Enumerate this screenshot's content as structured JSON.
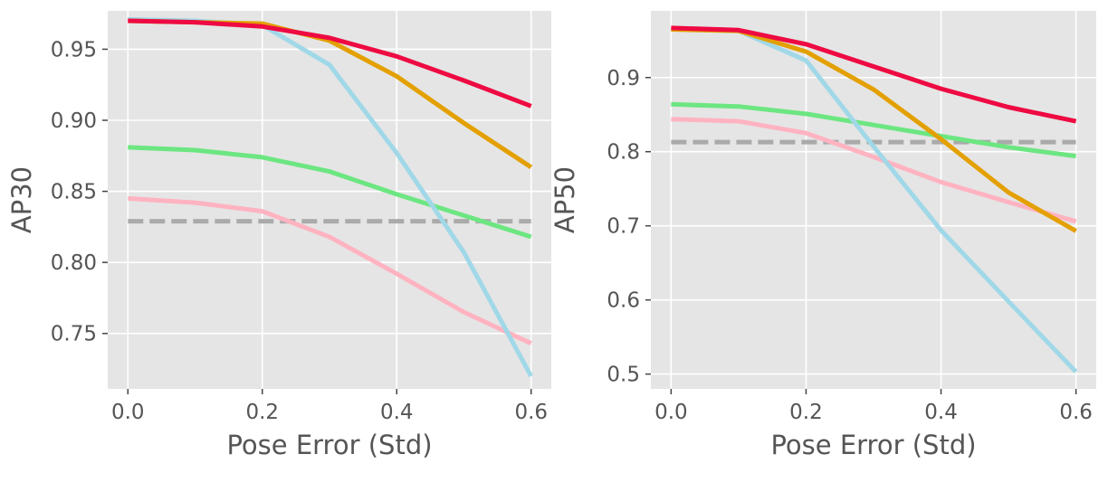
{
  "chart_data": [
    {
      "type": "line",
      "title": "",
      "xlabel": "Pose Error (Std)",
      "ylabel": "AP30",
      "xlim": [
        -0.03,
        0.63
      ],
      "ylim": [
        0.711,
        0.977
      ],
      "x_ticks": [
        0.0,
        0.2,
        0.4,
        0.6
      ],
      "x_tick_labels": [
        "0.0",
        "0.2",
        "0.4",
        "0.6"
      ],
      "y_ticks": [
        0.75,
        0.8,
        0.85,
        0.9,
        0.95
      ],
      "y_tick_labels": [
        "0.75",
        "0.80",
        "0.85",
        "0.90",
        "0.95"
      ],
      "grid": true,
      "x": [
        0.0,
        0.1,
        0.2,
        0.3,
        0.4,
        0.5,
        0.6
      ],
      "series": [
        {
          "name": "baseline",
          "color": "#aaaaaa",
          "dashed": true,
          "values": [
            0.829,
            0.829,
            0.829,
            0.829,
            0.829,
            0.829,
            0.829
          ]
        },
        {
          "name": "pink",
          "color": "#ffb3c1",
          "values": [
            0.845,
            0.842,
            0.836,
            0.818,
            0.792,
            0.765,
            0.743
          ]
        },
        {
          "name": "green",
          "color": "#6ce681",
          "values": [
            0.881,
            0.879,
            0.874,
            0.864,
            0.848,
            0.833,
            0.818
          ]
        },
        {
          "name": "light-blue",
          "color": "#a0d8e8",
          "values": [
            0.971,
            0.97,
            0.967,
            0.939,
            0.877,
            0.807,
            0.72
          ]
        },
        {
          "name": "orange",
          "color": "#e3a000",
          "values": [
            0.97,
            0.969,
            0.968,
            0.956,
            0.931,
            0.898,
            0.867
          ]
        },
        {
          "name": "red",
          "color": "#ee0a42",
          "values": [
            0.97,
            0.969,
            0.966,
            0.958,
            0.945,
            0.928,
            0.91
          ]
        }
      ]
    },
    {
      "type": "line",
      "title": "",
      "xlabel": "Pose Error (Std)",
      "ylabel": "AP50",
      "xlim": [
        -0.03,
        0.63
      ],
      "ylim": [
        0.48,
        0.99
      ],
      "x_ticks": [
        0.0,
        0.2,
        0.4,
        0.6
      ],
      "x_tick_labels": [
        "0.0",
        "0.2",
        "0.4",
        "0.6"
      ],
      "y_ticks": [
        0.5,
        0.6,
        0.7,
        0.8,
        0.9
      ],
      "y_tick_labels": [
        "0.5",
        "0.6",
        "0.7",
        "0.8",
        "0.9"
      ],
      "grid": true,
      "x": [
        0.0,
        0.1,
        0.2,
        0.3,
        0.4,
        0.5,
        0.6
      ],
      "series": [
        {
          "name": "baseline",
          "color": "#aaaaaa",
          "dashed": true,
          "values": [
            0.813,
            0.813,
            0.813,
            0.813,
            0.813,
            0.813,
            0.813
          ]
        },
        {
          "name": "pink",
          "color": "#ffb3c1",
          "values": [
            0.844,
            0.841,
            0.825,
            0.793,
            0.759,
            0.732,
            0.706
          ]
        },
        {
          "name": "green",
          "color": "#6ce681",
          "values": [
            0.864,
            0.861,
            0.851,
            0.836,
            0.821,
            0.806,
            0.794
          ]
        },
        {
          "name": "light-blue",
          "color": "#a0d8e8",
          "values": [
            0.966,
            0.963,
            0.923,
            0.807,
            0.694,
            0.598,
            0.503
          ]
        },
        {
          "name": "orange",
          "color": "#e3a000",
          "values": [
            0.965,
            0.963,
            0.935,
            0.884,
            0.817,
            0.745,
            0.693
          ]
        },
        {
          "name": "red",
          "color": "#ee0a42",
          "values": [
            0.967,
            0.964,
            0.945,
            0.915,
            0.885,
            0.86,
            0.841
          ]
        }
      ]
    }
  ]
}
